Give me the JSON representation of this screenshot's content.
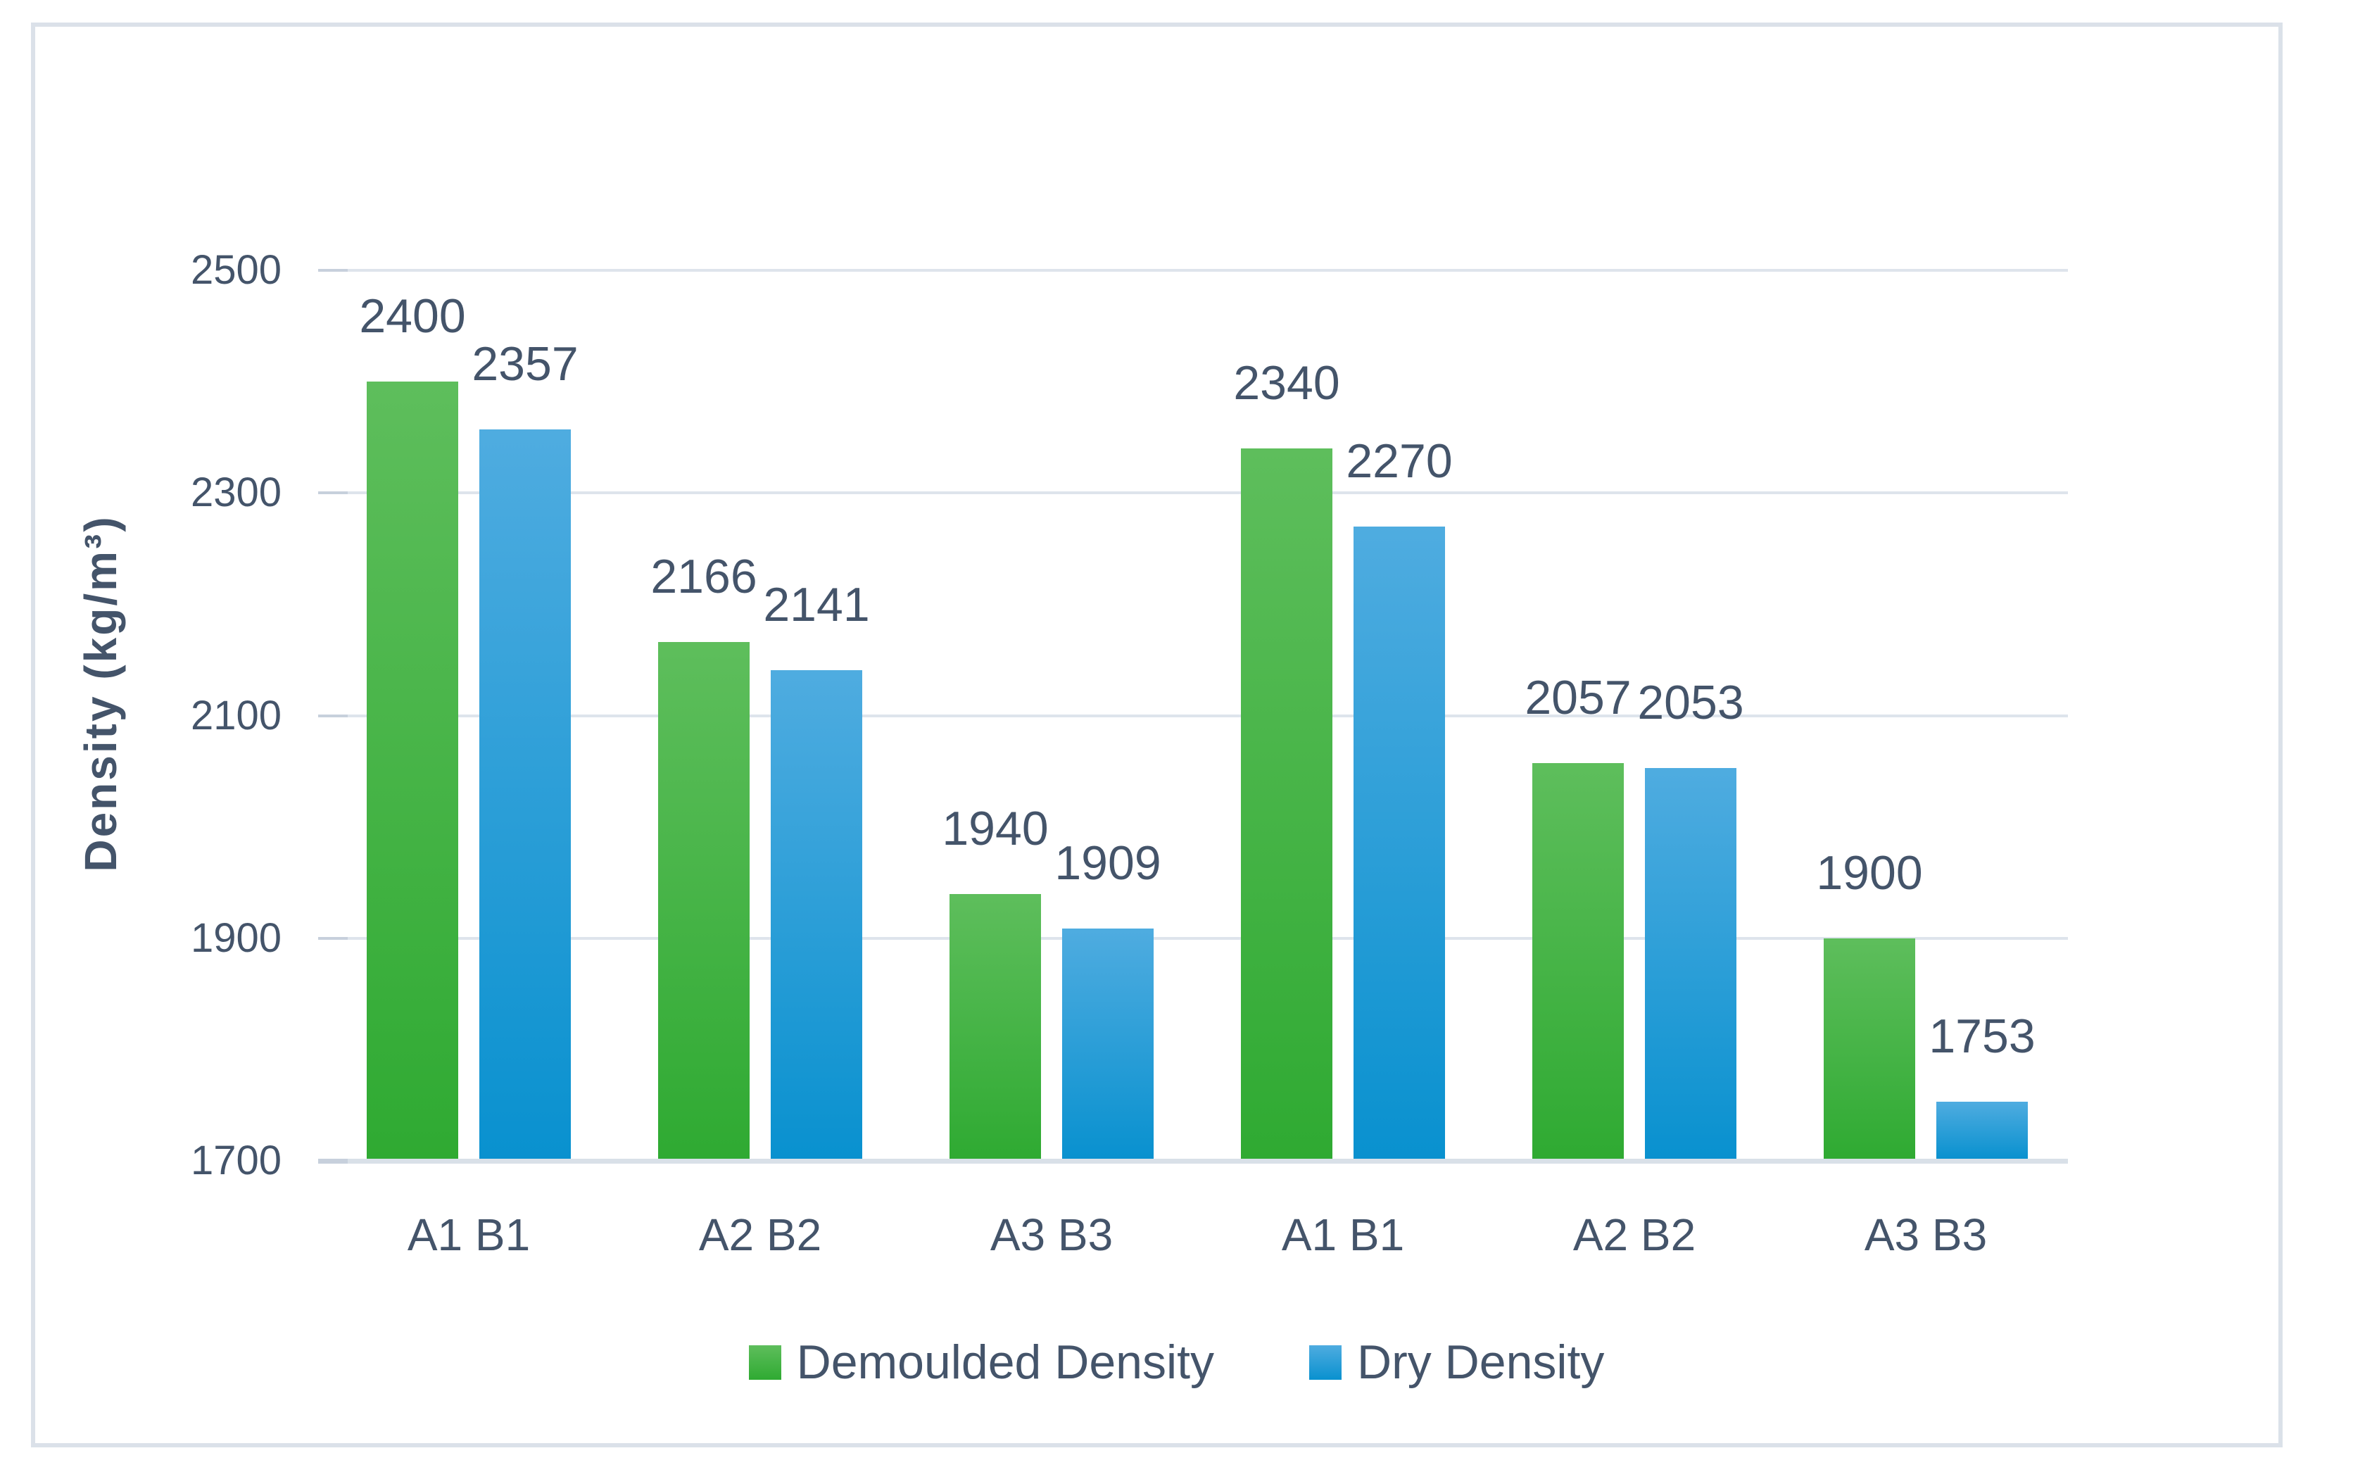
{
  "chart_data": {
    "type": "bar",
    "title": "",
    "xlabel": "",
    "ylabel": "Density (kg/m³)",
    "ylim": [
      1700,
      2500
    ],
    "yticks": [
      2500,
      2300,
      2100,
      1900,
      1700
    ],
    "grid": "horizontal",
    "legend_position": "bottom",
    "categories": [
      "A1 B1",
      "A2 B2",
      "A3 B3",
      "A1 B1",
      "A2 B2",
      "A3 B3"
    ],
    "series": [
      {
        "name": "Demoulded Density",
        "color_top": "#5EBE5C",
        "color_bottom": "#2FAA32",
        "values": [
          2400,
          2166,
          1940,
          2340,
          2057,
          1900
        ]
      },
      {
        "name": "Dry Density",
        "color_top": "#4FACE0",
        "color_bottom": "#0991CF",
        "values": [
          2357,
          2141,
          1909,
          2270,
          2053,
          1753
        ]
      }
    ],
    "data_labels_shown": true
  },
  "colors": {
    "text": "#44546A",
    "gridline": "#DEE4EC",
    "axis_line": "#D9E0E8",
    "tick": "#C7D0DC",
    "border": "#DBE1E9",
    "background": "#FFFFFF"
  }
}
